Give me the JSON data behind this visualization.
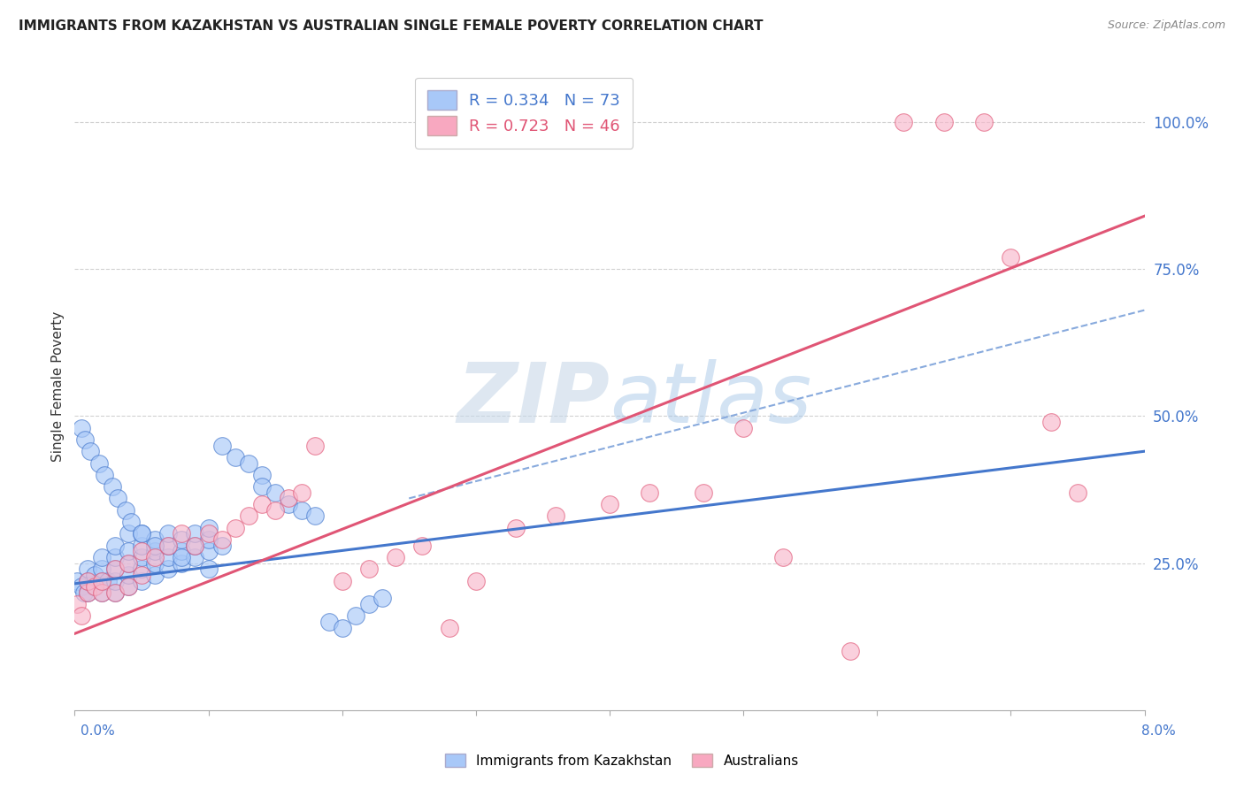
{
  "title": "IMMIGRANTS FROM KAZAKHSTAN VS AUSTRALIAN SINGLE FEMALE POVERTY CORRELATION CHART",
  "source": "Source: ZipAtlas.com",
  "ylabel": "Single Female Poverty",
  "ytick_labels": [
    "25.0%",
    "50.0%",
    "75.0%",
    "100.0%"
  ],
  "ytick_values": [
    0.25,
    0.5,
    0.75,
    1.0
  ],
  "legend_color1": "#a8c8f8",
  "legend_color2": "#f8a8c0",
  "scatter_color1": "#a8c8f8",
  "scatter_color2": "#f8b8cc",
  "line_color1": "#4477cc",
  "line_color2": "#e05575",
  "dash_color": "#88aadd",
  "background_color": "#ffffff",
  "grid_color": "#cccccc",
  "xmin": 0.0,
  "xmax": 0.08,
  "ymin": 0.0,
  "ymax": 1.1,
  "blue_x": [
    0.0002,
    0.0005,
    0.0007,
    0.001,
    0.001,
    0.001,
    0.0015,
    0.0015,
    0.002,
    0.002,
    0.002,
    0.002,
    0.0025,
    0.003,
    0.003,
    0.003,
    0.003,
    0.003,
    0.004,
    0.004,
    0.004,
    0.004,
    0.004,
    0.005,
    0.005,
    0.005,
    0.005,
    0.005,
    0.006,
    0.006,
    0.006,
    0.006,
    0.007,
    0.007,
    0.007,
    0.007,
    0.008,
    0.008,
    0.008,
    0.009,
    0.009,
    0.009,
    0.01,
    0.01,
    0.01,
    0.011,
    0.011,
    0.012,
    0.013,
    0.014,
    0.014,
    0.015,
    0.016,
    0.017,
    0.018,
    0.019,
    0.02,
    0.021,
    0.022,
    0.023,
    0.0005,
    0.0008,
    0.0012,
    0.0018,
    0.0022,
    0.0028,
    0.0032,
    0.0038,
    0.0042,
    0.005,
    0.006,
    0.008,
    0.01
  ],
  "blue_y": [
    0.22,
    0.21,
    0.2,
    0.2,
    0.22,
    0.24,
    0.21,
    0.23,
    0.2,
    0.22,
    0.24,
    0.26,
    0.22,
    0.2,
    0.22,
    0.24,
    0.26,
    0.28,
    0.21,
    0.23,
    0.25,
    0.27,
    0.3,
    0.22,
    0.24,
    0.26,
    0.28,
    0.3,
    0.23,
    0.25,
    0.27,
    0.29,
    0.24,
    0.26,
    0.28,
    0.3,
    0.25,
    0.27,
    0.29,
    0.26,
    0.28,
    0.3,
    0.27,
    0.29,
    0.31,
    0.28,
    0.45,
    0.43,
    0.42,
    0.4,
    0.38,
    0.37,
    0.35,
    0.34,
    0.33,
    0.15,
    0.14,
    0.16,
    0.18,
    0.19,
    0.48,
    0.46,
    0.44,
    0.42,
    0.4,
    0.38,
    0.36,
    0.34,
    0.32,
    0.3,
    0.28,
    0.26,
    0.24
  ],
  "pink_x": [
    0.0002,
    0.0005,
    0.001,
    0.001,
    0.0015,
    0.002,
    0.002,
    0.003,
    0.003,
    0.004,
    0.004,
    0.005,
    0.005,
    0.006,
    0.007,
    0.008,
    0.009,
    0.01,
    0.011,
    0.012,
    0.013,
    0.014,
    0.015,
    0.016,
    0.017,
    0.018,
    0.02,
    0.022,
    0.024,
    0.026,
    0.028,
    0.03,
    0.033,
    0.036,
    0.04,
    0.043,
    0.047,
    0.05,
    0.053,
    0.058,
    0.062,
    0.065,
    0.068,
    0.07,
    0.073,
    0.075
  ],
  "pink_y": [
    0.18,
    0.16,
    0.2,
    0.22,
    0.21,
    0.2,
    0.22,
    0.2,
    0.24,
    0.21,
    0.25,
    0.23,
    0.27,
    0.26,
    0.28,
    0.3,
    0.28,
    0.3,
    0.29,
    0.31,
    0.33,
    0.35,
    0.34,
    0.36,
    0.37,
    0.45,
    0.22,
    0.24,
    0.26,
    0.28,
    0.14,
    0.22,
    0.31,
    0.33,
    0.35,
    0.37,
    0.37,
    0.48,
    0.26,
    0.1,
    1.0,
    1.0,
    1.0,
    0.77,
    0.49,
    0.37
  ],
  "blue_line_x0": 0.0,
  "blue_line_x1": 0.08,
  "blue_line_y0": 0.215,
  "blue_line_y1": 0.44,
  "pink_line_x0": 0.0,
  "pink_line_x1": 0.08,
  "pink_line_y0": 0.13,
  "pink_line_y1": 0.84,
  "dash_line_x0": 0.025,
  "dash_line_x1": 0.08,
  "dash_line_y0": 0.36,
  "dash_line_y1": 0.68
}
